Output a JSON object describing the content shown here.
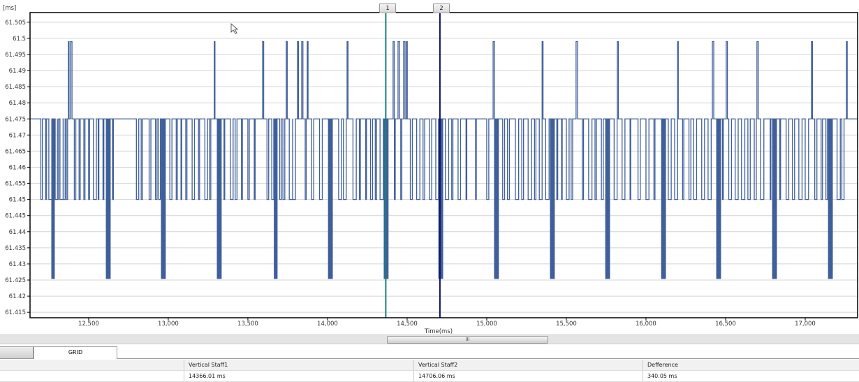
{
  "chart_data": {
    "type": "line",
    "xlabel": "Time(ms)",
    "ylabel": "[ms]",
    "xlim": [
      12132,
      17329
    ],
    "ylim": [
      61.4133,
      61.508
    ],
    "x_ticks": [
      "12,500",
      "13,000",
      "13,500",
      "14,000",
      "14,500",
      "15,000",
      "15,500",
      "16,000",
      "16,500",
      "17,000"
    ],
    "x_tick_values": [
      12500,
      13000,
      13500,
      14000,
      14500,
      15000,
      15500,
      16000,
      16500,
      17000
    ],
    "y_ticks": [
      "61.505",
      "61.5",
      "61.495",
      "61.49",
      "61.485",
      "61.48",
      "61.475",
      "61.47",
      "61.465",
      "61.46",
      "61.455",
      "61.45",
      "61.445",
      "61.44",
      "61.435",
      "61.43",
      "61.425",
      "61.42",
      "61.415"
    ],
    "y_tick_values": [
      61.505,
      61.5,
      61.495,
      61.49,
      61.485,
      61.48,
      61.475,
      61.47,
      61.465,
      61.46,
      61.455,
      61.45,
      61.445,
      61.44,
      61.435,
      61.43,
      61.425,
      61.42,
      61.415
    ],
    "baseline": 61.475,
    "levels": {
      "high": 61.499,
      "mid": 61.45,
      "low": 61.4255
    },
    "high_spikes_ms": [
      12373,
      12386,
      13289,
      13592,
      13741,
      13811,
      13838,
      13873,
      14123,
      14412,
      14443,
      14478,
      14496,
      14750,
      15040,
      15347,
      15561,
      15820,
      16145,
      16197,
      16417,
      16504,
      16697,
      17039,
      17259
    ],
    "low_dips_ms": [
      12272,
      12623,
      12969,
      13320,
      13671,
      14018,
      14368,
      14711,
      15061,
      15412,
      15759,
      16110,
      16456,
      16807,
      17158
    ],
    "mid_dips_ms": [
      12200,
      12230,
      12250,
      12290,
      12300,
      12320,
      12340,
      12360,
      12410,
      12440,
      12470,
      12500,
      12530,
      12560,
      12590,
      12650,
      12800,
      12830,
      12880,
      12920,
      12940,
      13010,
      13050,
      13080,
      13110,
      13150,
      13190,
      13230,
      13260,
      13350,
      13390,
      13420,
      13460,
      13500,
      13540,
      13620,
      13650,
      13700,
      13720,
      13760,
      13780,
      13860,
      13900,
      13950,
      14070,
      14100,
      14160,
      14200,
      14240,
      14270,
      14300,
      14330,
      14420,
      14460,
      14520,
      14560,
      14600,
      14640,
      14680,
      14740,
      14780,
      14820,
      14870,
      14930,
      15000,
      15100,
      15130,
      15180,
      15220,
      15260,
      15300,
      15330,
      15370,
      15440,
      15470,
      15500,
      15530,
      15600,
      15640,
      15680,
      15720,
      15800,
      15850,
      15900,
      15950,
      16000,
      16050,
      16140,
      16180,
      16230,
      16270,
      16300,
      16350,
      16390,
      16480,
      16520,
      16560,
      16600,
      16640,
      16680,
      16720,
      16780,
      16840,
      16880,
      16920,
      16960,
      17000,
      17060,
      17100,
      17130,
      17200,
      17230
    ],
    "series_color": "#3f5f9a",
    "cursors": [
      {
        "label": "1",
        "time_ms": 14366.01,
        "color": "#1a7f7f"
      },
      {
        "label": "2",
        "time_ms": 14706.06,
        "color": "#10106a"
      }
    ]
  },
  "tabs": {
    "left_partial": "",
    "active": "GRID"
  },
  "scroll_thumb": "III",
  "grid": {
    "headers": [
      "",
      "Vertical Staff1",
      "Vertical Staff2",
      "Defference"
    ],
    "row": [
      "",
      "14366.01 ms",
      "14706.06 ms",
      "340.05 ms"
    ]
  }
}
